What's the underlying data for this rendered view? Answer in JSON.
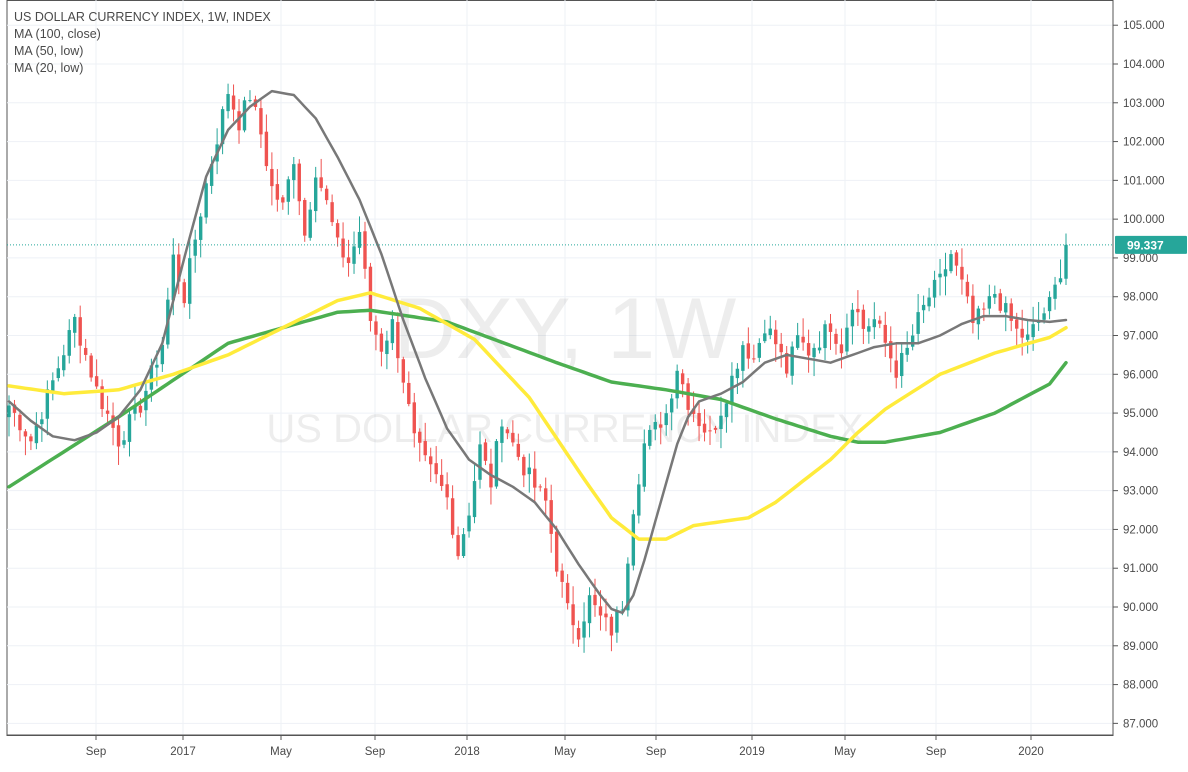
{
  "chart_data": {
    "type": "candlestick",
    "title": "US DOLLAR CURRENCY INDEX, 1W, INDEX",
    "watermark": {
      "symbol": "DXY, 1W",
      "name": "US DOLLAR CURRENCY INDEX"
    },
    "indicators": [
      {
        "name": "MA (100, close)",
        "color": "#4caf50"
      },
      {
        "name": "MA (50, low)",
        "color": "#ffeb3b"
      },
      {
        "name": "MA (20, low)",
        "color": "#787878"
      }
    ],
    "ylim": [
      86.7,
      105.65
    ],
    "y_ticks": [
      "87.000",
      "88.000",
      "89.000",
      "90.000",
      "91.000",
      "92.000",
      "93.000",
      "94.000",
      "95.000",
      "96.000",
      "97.000",
      "98.000",
      "99.000",
      "100.000",
      "101.000",
      "102.000",
      "103.000",
      "104.000",
      "105.000"
    ],
    "x_ticks": [
      "Sep",
      "2017",
      "May",
      "Sep",
      "2018",
      "May",
      "Sep",
      "2019",
      "May",
      "Sep",
      "2020"
    ],
    "last_price": "99.337",
    "last_price_value": 99.337,
    "colors": {
      "up": "#26a69a",
      "down": "#ef5350",
      "grid": "#eef1f6",
      "axis": "#888888",
      "price_line": "#26a69a"
    },
    "anchors": [
      [
        0,
        95.2
      ],
      [
        4,
        94.3
      ],
      [
        8,
        95.8
      ],
      [
        12,
        97.4
      ],
      [
        16,
        95.6
      ],
      [
        20,
        94.3
      ],
      [
        24,
        95.2
      ],
      [
        28,
        96.8
      ],
      [
        30,
        99.0
      ],
      [
        32,
        98.0
      ],
      [
        34,
        99.5
      ],
      [
        36,
        100.9
      ],
      [
        38,
        102.1
      ],
      [
        40,
        103.3
      ],
      [
        42,
        102.5
      ],
      [
        44,
        103.2
      ],
      [
        46,
        102.2
      ],
      [
        48,
        100.8
      ],
      [
        50,
        100.3
      ],
      [
        52,
        101.6
      ],
      [
        54,
        99.6
      ],
      [
        56,
        101.3
      ],
      [
        58,
        100.4
      ],
      [
        60,
        99.3
      ],
      [
        62,
        98.9
      ],
      [
        64,
        99.7
      ],
      [
        66,
        97.4
      ],
      [
        68,
        96.7
      ],
      [
        70,
        97.3
      ],
      [
        72,
        95.9
      ],
      [
        74,
        94.3
      ],
      [
        76,
        93.7
      ],
      [
        78,
        93.3
      ],
      [
        80,
        92.8
      ],
      [
        82,
        91.4
      ],
      [
        84,
        92.5
      ],
      [
        86,
        94.1
      ],
      [
        88,
        93.2
      ],
      [
        90,
        94.9
      ],
      [
        92,
        94.2
      ],
      [
        94,
        93.6
      ],
      [
        96,
        93.1
      ],
      [
        98,
        92.7
      ],
      [
        100,
        91.1
      ],
      [
        102,
        89.9
      ],
      [
        104,
        89.4
      ],
      [
        106,
        90.2
      ],
      [
        108,
        89.7
      ],
      [
        110,
        89.4
      ],
      [
        112,
        90.1
      ],
      [
        114,
        92.6
      ],
      [
        116,
        94.2
      ],
      [
        118,
        94.6
      ],
      [
        120,
        95.0
      ],
      [
        122,
        96.2
      ],
      [
        124,
        95.3
      ],
      [
        126,
        94.8
      ],
      [
        128,
        94.4
      ],
      [
        130,
        95.1
      ],
      [
        132,
        95.9
      ],
      [
        134,
        96.8
      ],
      [
        136,
        96.4
      ],
      [
        138,
        97.3
      ],
      [
        140,
        96.8
      ],
      [
        142,
        96.1
      ],
      [
        144,
        96.9
      ],
      [
        146,
        96.6
      ],
      [
        148,
        96.9
      ],
      [
        150,
        97.3
      ],
      [
        152,
        96.7
      ],
      [
        154,
        97.9
      ],
      [
        156,
        97.2
      ],
      [
        158,
        97.4
      ],
      [
        160,
        96.8
      ],
      [
        162,
        96.1
      ],
      [
        164,
        96.6
      ],
      [
        166,
        97.4
      ],
      [
        168,
        98.0
      ],
      [
        170,
        98.4
      ],
      [
        172,
        99.1
      ],
      [
        174,
        98.3
      ],
      [
        176,
        97.3
      ],
      [
        178,
        97.6
      ],
      [
        180,
        98.1
      ],
      [
        182,
        97.6
      ],
      [
        184,
        97.1
      ],
      [
        186,
        96.9
      ],
      [
        188,
        97.4
      ],
      [
        190,
        97.8
      ],
      [
        191,
        98.2
      ],
      [
        192,
        98.7
      ],
      [
        193,
        99.3
      ]
    ],
    "ma_100_close": [
      [
        0,
        93.1
      ],
      [
        20,
        94.9
      ],
      [
        40,
        96.8
      ],
      [
        60,
        97.6
      ],
      [
        66,
        97.65
      ],
      [
        80,
        97.35
      ],
      [
        100,
        96.3
      ],
      [
        110,
        95.8
      ],
      [
        120,
        95.6
      ],
      [
        130,
        95.35
      ],
      [
        140,
        94.85
      ],
      [
        150,
        94.4
      ],
      [
        155,
        94.25
      ],
      [
        160,
        94.25
      ],
      [
        170,
        94.5
      ],
      [
        180,
        95.0
      ],
      [
        190,
        95.75
      ],
      [
        193,
        96.3
      ]
    ],
    "ma_50_low": [
      [
        0,
        95.7
      ],
      [
        10,
        95.5
      ],
      [
        20,
        95.6
      ],
      [
        30,
        96.0
      ],
      [
        40,
        96.5
      ],
      [
        50,
        97.2
      ],
      [
        60,
        97.9
      ],
      [
        66,
        98.1
      ],
      [
        75,
        97.7
      ],
      [
        85,
        96.9
      ],
      [
        95,
        95.4
      ],
      [
        105,
        93.3
      ],
      [
        110,
        92.3
      ],
      [
        115,
        91.75
      ],
      [
        120,
        91.75
      ],
      [
        125,
        92.1
      ],
      [
        135,
        92.3
      ],
      [
        140,
        92.7
      ],
      [
        150,
        93.8
      ],
      [
        155,
        94.5
      ],
      [
        160,
        95.1
      ],
      [
        170,
        96.0
      ],
      [
        180,
        96.55
      ],
      [
        190,
        96.95
      ],
      [
        193,
        97.2
      ]
    ],
    "ma_20_low": [
      [
        0,
        95.3
      ],
      [
        4,
        94.8
      ],
      [
        8,
        94.4
      ],
      [
        12,
        94.3
      ],
      [
        16,
        94.5
      ],
      [
        20,
        94.9
      ],
      [
        24,
        95.6
      ],
      [
        28,
        96.8
      ],
      [
        32,
        99.0
      ],
      [
        36,
        101.1
      ],
      [
        40,
        102.3
      ],
      [
        44,
        102.9
      ],
      [
        48,
        103.3
      ],
      [
        52,
        103.2
      ],
      [
        56,
        102.6
      ],
      [
        60,
        101.6
      ],
      [
        64,
        100.5
      ],
      [
        68,
        99.1
      ],
      [
        72,
        97.4
      ],
      [
        76,
        95.9
      ],
      [
        80,
        94.6
      ],
      [
        84,
        93.8
      ],
      [
        88,
        93.4
      ],
      [
        92,
        93.1
      ],
      [
        96,
        92.7
      ],
      [
        100,
        92.0
      ],
      [
        104,
        91.1
      ],
      [
        108,
        90.3
      ],
      [
        110,
        89.95
      ],
      [
        112,
        89.85
      ],
      [
        114,
        90.3
      ],
      [
        116,
        91.2
      ],
      [
        118,
        92.2
      ],
      [
        120,
        93.2
      ],
      [
        122,
        94.2
      ],
      [
        124,
        94.9
      ],
      [
        126,
        95.3
      ],
      [
        130,
        95.5
      ],
      [
        134,
        95.8
      ],
      [
        138,
        96.3
      ],
      [
        142,
        96.5
      ],
      [
        146,
        96.4
      ],
      [
        150,
        96.3
      ],
      [
        154,
        96.5
      ],
      [
        158,
        96.7
      ],
      [
        162,
        96.8
      ],
      [
        166,
        96.8
      ],
      [
        170,
        97.0
      ],
      [
        174,
        97.3
      ],
      [
        178,
        97.5
      ],
      [
        182,
        97.5
      ],
      [
        186,
        97.4
      ],
      [
        190,
        97.35
      ],
      [
        193,
        97.4
      ]
    ]
  }
}
